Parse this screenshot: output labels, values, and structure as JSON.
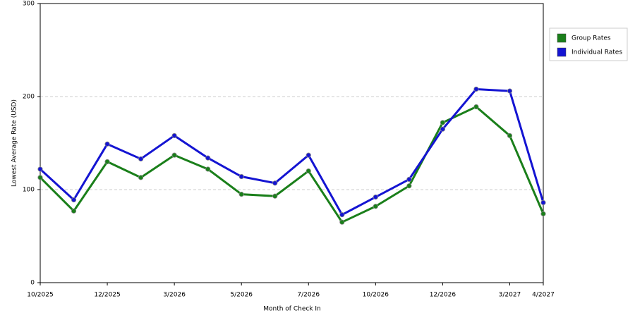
{
  "chart_data": {
    "type": "line",
    "y_label": "Lowest Average Rate (USD)",
    "x_label": "Month of Check In",
    "categories": [
      "10/2025",
      null,
      "12/2025",
      null,
      "3/2026",
      null,
      "5/2026",
      null,
      "7/2026",
      null,
      "10/2026",
      null,
      "12/2026",
      null,
      "3/2027",
      "4/2027"
    ],
    "series": [
      {
        "name": "Group Rates",
        "color": "#1a7f1a",
        "values": [
          113,
          77,
          130,
          113,
          137,
          122,
          95,
          93,
          120,
          65,
          82,
          104,
          172,
          189,
          158,
          74
        ]
      },
      {
        "name": "Individual Rates",
        "color": "#1414d2",
        "values": [
          122,
          89,
          149,
          133,
          158,
          134,
          114,
          107,
          137,
          73,
          92,
          111,
          165,
          208,
          206,
          86
        ]
      }
    ],
    "ylim": [
      0,
      300
    ],
    "yticks": [
      0,
      100,
      200,
      300
    ],
    "grid": true,
    "legend": "right"
  }
}
